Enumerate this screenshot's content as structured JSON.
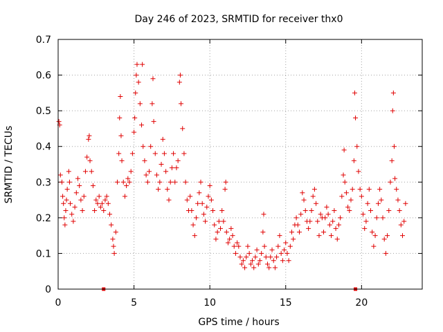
{
  "chart_data": {
    "type": "scatter",
    "title": "Day 246 of 2023, SRMTID for receiver thx0",
    "xlabel": "GPS time / hours",
    "ylabel": "SRMTID / TECUs",
    "xlim": [
      0,
      24
    ],
    "ylim": [
      0,
      0.7
    ],
    "grid": true,
    "marker": "+",
    "color": "#e00000",
    "x_ticks": [
      0,
      5,
      10,
      15,
      20
    ],
    "x_tick_labels": [
      "0",
      "5",
      "10",
      "15",
      "20"
    ],
    "y_ticks": [
      0,
      0.1,
      0.2,
      0.3,
      0.4,
      0.5,
      0.6,
      0.7
    ],
    "y_tick_labels": [
      "0",
      "0.1",
      "0.2",
      "0.3",
      "0.4",
      "0.5",
      "0.6",
      "0.7"
    ],
    "series": [
      {
        "name": "SRMTID",
        "points": [
          [
            0.05,
            0.47
          ],
          [
            0.1,
            0.46
          ],
          [
            0.15,
            0.32
          ],
          [
            0.25,
            0.3
          ],
          [
            0.3,
            0.26
          ],
          [
            0.35,
            0.24
          ],
          [
            0.4,
            0.2
          ],
          [
            0.45,
            0.18
          ],
          [
            0.5,
            0.22
          ],
          [
            0.55,
            0.25
          ],
          [
            0.6,
            0.28
          ],
          [
            0.7,
            0.33
          ],
          [
            0.75,
            0.3
          ],
          [
            0.8,
            0.24
          ],
          [
            0.9,
            0.21
          ],
          [
            1.0,
            0.19
          ],
          [
            1.1,
            0.23
          ],
          [
            1.2,
            0.27
          ],
          [
            1.3,
            0.31
          ],
          [
            1.4,
            0.29
          ],
          [
            1.5,
            0.25
          ],
          [
            1.6,
            0.22
          ],
          [
            1.7,
            0.26
          ],
          [
            1.8,
            0.33
          ],
          [
            1.9,
            0.37
          ],
          [
            2.0,
            0.42
          ],
          [
            2.05,
            0.43
          ],
          [
            2.1,
            0.36
          ],
          [
            2.2,
            0.33
          ],
          [
            2.3,
            0.29
          ],
          [
            2.4,
            0.22
          ],
          [
            2.5,
            0.25
          ],
          [
            2.6,
            0.24
          ],
          [
            2.7,
            0.26
          ],
          [
            2.8,
            0.23
          ],
          [
            2.9,
            0.24
          ],
          [
            3.0,
            0.22
          ],
          [
            3.1,
            0.25
          ],
          [
            3.2,
            0.26
          ],
          [
            3.3,
            0.24
          ],
          [
            3.4,
            0.21
          ],
          [
            3.5,
            0.18
          ],
          [
            3.6,
            0.14
          ],
          [
            3.65,
            0.12
          ],
          [
            3.7,
            0.1
          ],
          [
            3.8,
            0.16
          ],
          [
            3.9,
            0.3
          ],
          [
            4.0,
            0.38
          ],
          [
            4.05,
            0.48
          ],
          [
            4.1,
            0.54
          ],
          [
            4.15,
            0.43
          ],
          [
            4.2,
            0.36
          ],
          [
            4.3,
            0.3
          ],
          [
            4.4,
            0.26
          ],
          [
            4.5,
            0.29
          ],
          [
            4.6,
            0.31
          ],
          [
            4.7,
            0.3
          ],
          [
            4.8,
            0.33
          ],
          [
            4.9,
            0.38
          ],
          [
            5.0,
            0.44
          ],
          [
            5.05,
            0.48
          ],
          [
            5.1,
            0.55
          ],
          [
            5.15,
            0.6
          ],
          [
            5.2,
            0.63
          ],
          [
            5.3,
            0.58
          ],
          [
            5.4,
            0.52
          ],
          [
            5.5,
            0.46
          ],
          [
            5.55,
            0.63
          ],
          [
            5.6,
            0.4
          ],
          [
            5.7,
            0.36
          ],
          [
            5.8,
            0.32
          ],
          [
            5.9,
            0.3
          ],
          [
            6.0,
            0.33
          ],
          [
            6.1,
            0.4
          ],
          [
            6.2,
            0.52
          ],
          [
            6.25,
            0.59
          ],
          [
            6.3,
            0.47
          ],
          [
            6.4,
            0.38
          ],
          [
            6.5,
            0.32
          ],
          [
            6.6,
            0.28
          ],
          [
            6.7,
            0.3
          ],
          [
            6.8,
            0.35
          ],
          [
            6.9,
            0.42
          ],
          [
            7.0,
            0.38
          ],
          [
            7.1,
            0.33
          ],
          [
            7.2,
            0.28
          ],
          [
            7.3,
            0.25
          ],
          [
            7.4,
            0.3
          ],
          [
            7.5,
            0.34
          ],
          [
            7.6,
            0.38
          ],
          [
            7.7,
            0.3
          ],
          [
            7.8,
            0.34
          ],
          [
            7.9,
            0.36
          ],
          [
            8.0,
            0.58
          ],
          [
            8.05,
            0.6
          ],
          [
            8.1,
            0.52
          ],
          [
            8.2,
            0.45
          ],
          [
            8.3,
            0.38
          ],
          [
            8.4,
            0.3
          ],
          [
            8.5,
            0.25
          ],
          [
            8.6,
            0.22
          ],
          [
            8.7,
            0.26
          ],
          [
            8.8,
            0.22
          ],
          [
            8.9,
            0.18
          ],
          [
            9.0,
            0.15
          ],
          [
            9.1,
            0.2
          ],
          [
            9.2,
            0.24
          ],
          [
            9.3,
            0.27
          ],
          [
            9.4,
            0.3
          ],
          [
            9.5,
            0.24
          ],
          [
            9.6,
            0.21
          ],
          [
            9.7,
            0.19
          ],
          [
            9.8,
            0.23
          ],
          [
            9.9,
            0.26
          ],
          [
            10.0,
            0.29
          ],
          [
            10.1,
            0.25
          ],
          [
            10.2,
            0.22
          ],
          [
            10.3,
            0.18
          ],
          [
            10.4,
            0.14
          ],
          [
            10.5,
            0.16
          ],
          [
            10.6,
            0.19
          ],
          [
            10.7,
            0.17
          ],
          [
            10.8,
            0.22
          ],
          [
            10.9,
            0.19
          ],
          [
            11.0,
            0.28
          ],
          [
            11.05,
            0.3
          ],
          [
            11.1,
            0.16
          ],
          [
            11.2,
            0.13
          ],
          [
            11.3,
            0.14
          ],
          [
            11.4,
            0.17
          ],
          [
            11.5,
            0.15
          ],
          [
            11.6,
            0.12
          ],
          [
            11.7,
            0.1
          ],
          [
            11.8,
            0.13
          ],
          [
            11.9,
            0.12
          ],
          [
            12.0,
            0.09
          ],
          [
            12.1,
            0.07
          ],
          [
            12.2,
            0.08
          ],
          [
            12.3,
            0.06
          ],
          [
            12.4,
            0.09
          ],
          [
            12.5,
            0.12
          ],
          [
            12.6,
            0.1
          ],
          [
            12.7,
            0.07
          ],
          [
            12.8,
            0.08
          ],
          [
            12.9,
            0.06
          ],
          [
            13.0,
            0.09
          ],
          [
            13.1,
            0.11
          ],
          [
            13.2,
            0.07
          ],
          [
            13.3,
            0.08
          ],
          [
            13.4,
            0.1
          ],
          [
            13.5,
            0.16
          ],
          [
            13.55,
            0.21
          ],
          [
            13.6,
            0.12
          ],
          [
            13.7,
            0.09
          ],
          [
            13.8,
            0.07
          ],
          [
            13.9,
            0.06
          ],
          [
            14.0,
            0.09
          ],
          [
            14.1,
            0.11
          ],
          [
            14.2,
            0.08
          ],
          [
            14.3,
            0.06
          ],
          [
            14.4,
            0.09
          ],
          [
            14.5,
            0.12
          ],
          [
            14.6,
            0.15
          ],
          [
            14.7,
            0.1
          ],
          [
            14.8,
            0.08
          ],
          [
            14.9,
            0.11
          ],
          [
            15.0,
            0.13
          ],
          [
            15.1,
            0.1
          ],
          [
            15.2,
            0.08
          ],
          [
            15.3,
            0.12
          ],
          [
            15.4,
            0.16
          ],
          [
            15.5,
            0.14
          ],
          [
            15.6,
            0.18
          ],
          [
            15.7,
            0.2
          ],
          [
            15.8,
            0.18
          ],
          [
            15.9,
            0.16
          ],
          [
            16.0,
            0.21
          ],
          [
            16.1,
            0.27
          ],
          [
            16.2,
            0.25
          ],
          [
            16.3,
            0.22
          ],
          [
            16.4,
            0.19
          ],
          [
            16.5,
            0.17
          ],
          [
            16.6,
            0.19
          ],
          [
            16.7,
            0.22
          ],
          [
            16.8,
            0.26
          ],
          [
            16.9,
            0.28
          ],
          [
            17.0,
            0.24
          ],
          [
            17.1,
            0.19
          ],
          [
            17.2,
            0.15
          ],
          [
            17.3,
            0.21
          ],
          [
            17.4,
            0.2
          ],
          [
            17.5,
            0.16
          ],
          [
            17.6,
            0.2
          ],
          [
            17.7,
            0.23
          ],
          [
            17.8,
            0.21
          ],
          [
            17.9,
            0.18
          ],
          [
            18.0,
            0.15
          ],
          [
            18.1,
            0.19
          ],
          [
            18.2,
            0.22
          ],
          [
            18.3,
            0.17
          ],
          [
            18.4,
            0.14
          ],
          [
            18.5,
            0.18
          ],
          [
            18.6,
            0.2
          ],
          [
            18.7,
            0.26
          ],
          [
            18.8,
            0.32
          ],
          [
            18.85,
            0.39
          ],
          [
            18.9,
            0.3
          ],
          [
            19.0,
            0.27
          ],
          [
            19.1,
            0.23
          ],
          [
            19.2,
            0.22
          ],
          [
            19.3,
            0.25
          ],
          [
            19.4,
            0.28
          ],
          [
            19.5,
            0.36
          ],
          [
            19.55,
            0.55
          ],
          [
            19.6,
            0.48
          ],
          [
            19.7,
            0.4
          ],
          [
            19.8,
            0.33
          ],
          [
            19.9,
            0.28
          ],
          [
            20.0,
            0.26
          ],
          [
            20.1,
            0.21
          ],
          [
            20.2,
            0.17
          ],
          [
            20.3,
            0.19
          ],
          [
            20.4,
            0.24
          ],
          [
            20.5,
            0.28
          ],
          [
            20.6,
            0.22
          ],
          [
            20.7,
            0.16
          ],
          [
            20.8,
            0.12
          ],
          [
            20.9,
            0.15
          ],
          [
            21.0,
            0.2
          ],
          [
            21.1,
            0.24
          ],
          [
            21.2,
            0.28
          ],
          [
            21.3,
            0.25
          ],
          [
            21.4,
            0.2
          ],
          [
            21.5,
            0.14
          ],
          [
            21.6,
            0.1
          ],
          [
            21.7,
            0.15
          ],
          [
            21.8,
            0.22
          ],
          [
            21.9,
            0.3
          ],
          [
            22.0,
            0.36
          ],
          [
            22.05,
            0.5
          ],
          [
            22.1,
            0.55
          ],
          [
            22.15,
            0.4
          ],
          [
            22.2,
            0.31
          ],
          [
            22.3,
            0.28
          ],
          [
            22.4,
            0.25
          ],
          [
            22.5,
            0.22
          ],
          [
            22.6,
            0.18
          ],
          [
            22.7,
            0.15
          ],
          [
            22.8,
            0.19
          ],
          [
            22.9,
            0.24
          ]
        ]
      }
    ],
    "axis_markers": [
      {
        "x": 3.0,
        "y": 0.0
      },
      {
        "x": 19.6,
        "y": 0.0
      }
    ]
  }
}
